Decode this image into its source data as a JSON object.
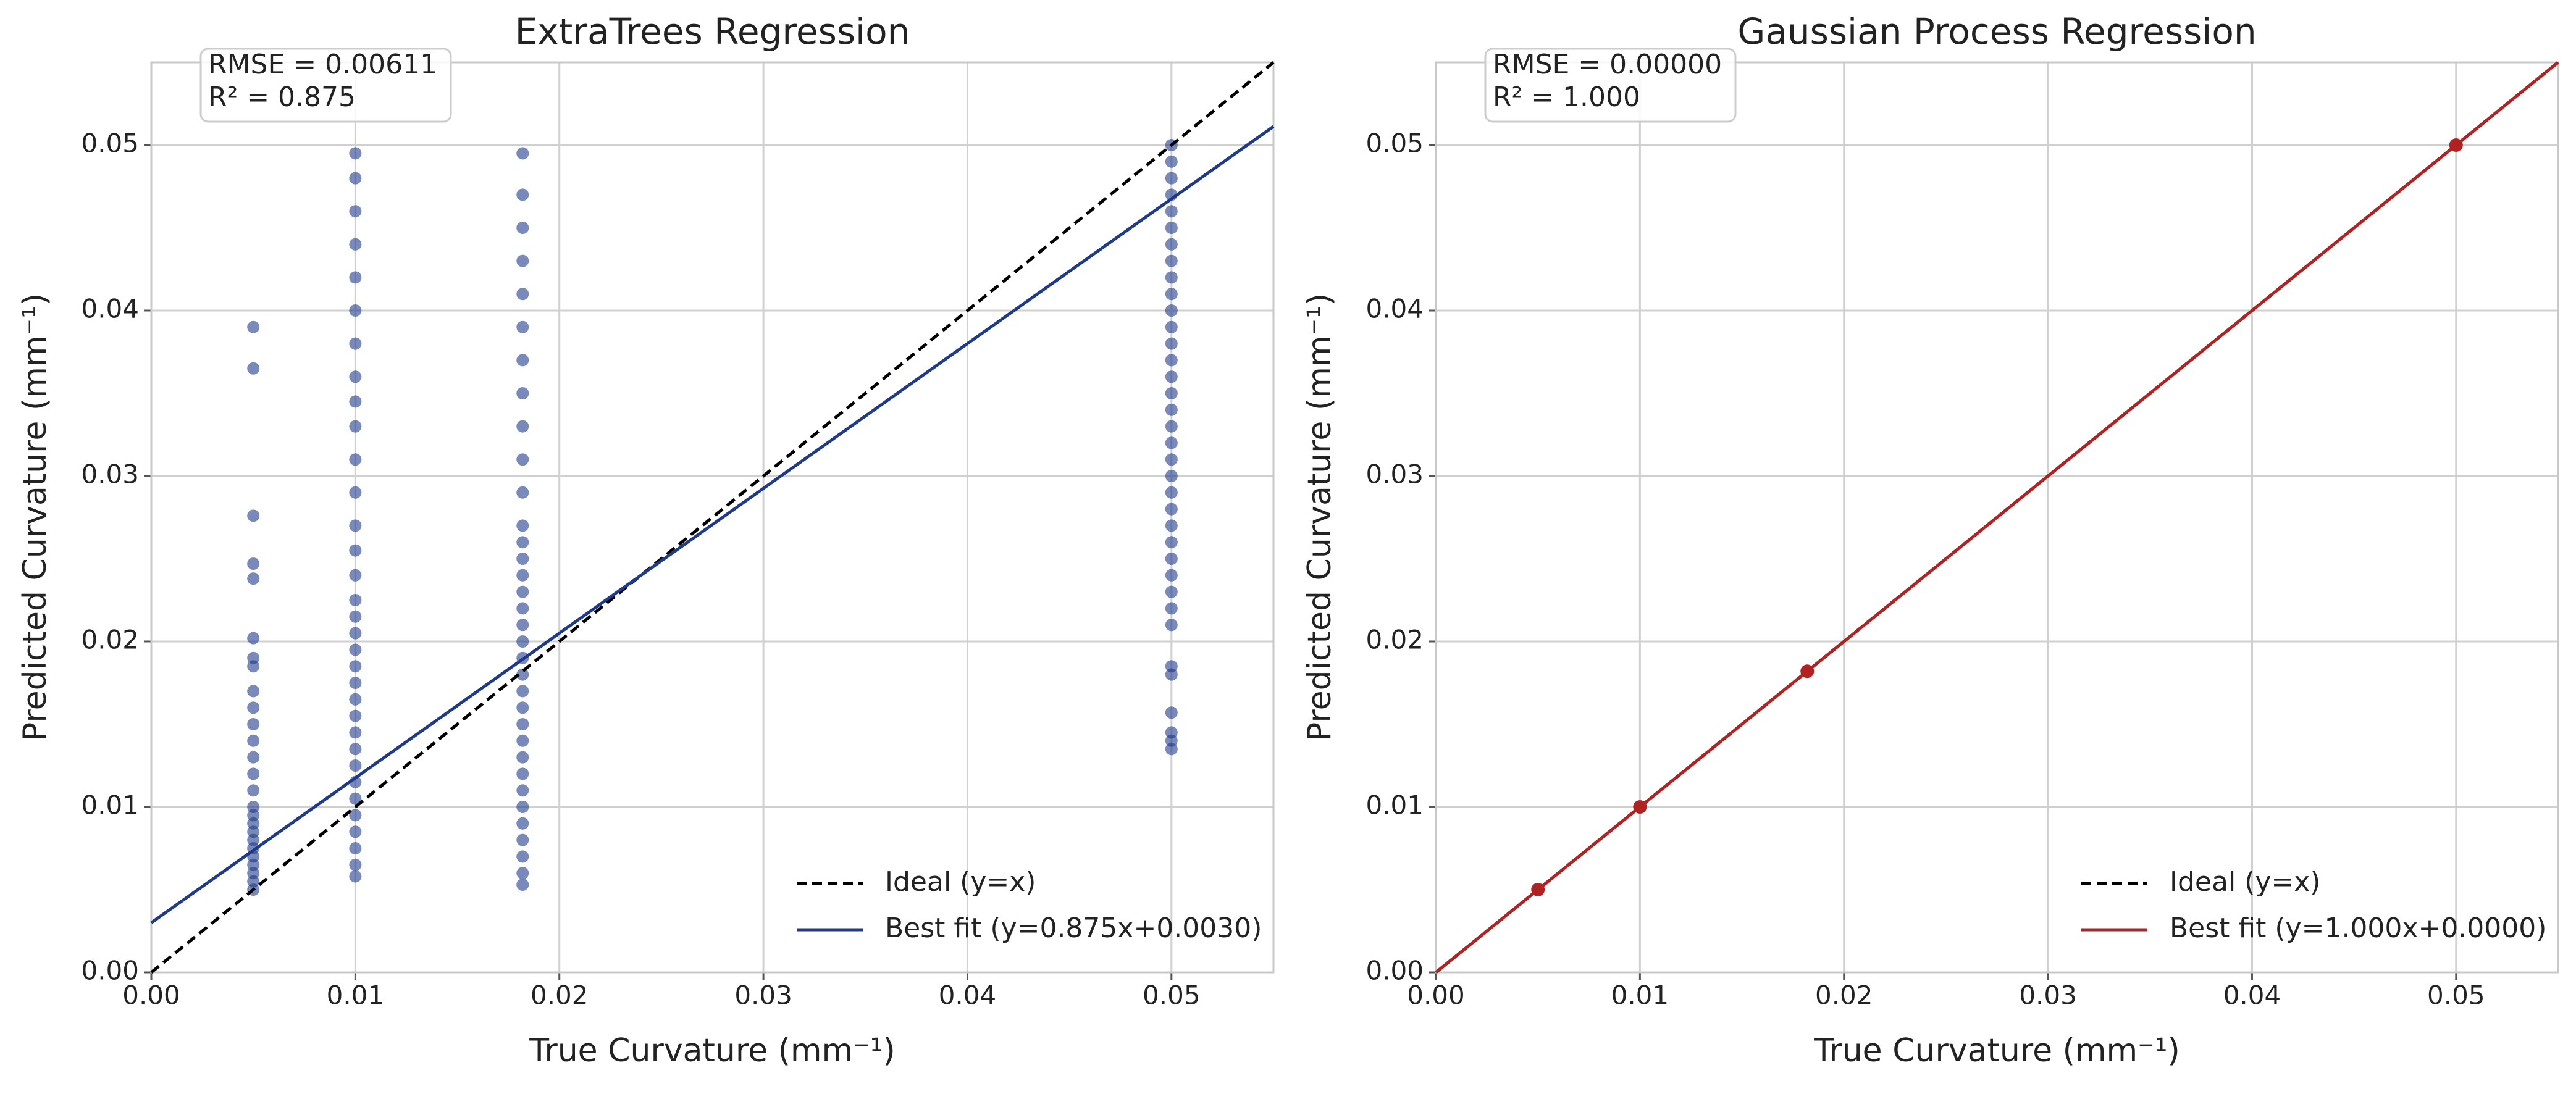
{
  "chart_data": [
    {
      "type": "scatter",
      "title": "ExtraTrees Regression",
      "xlabel": "True Curvature (mm⁻¹)",
      "ylabel": "Predicted Curvature (mm⁻¹)",
      "annotation": [
        "RMSE = 0.00611",
        "R² = 0.875"
      ],
      "xlim": [
        0,
        0.055
      ],
      "ylim": [
        0,
        0.055
      ],
      "xticks": [
        {
          "value": 0,
          "label": "0.00"
        },
        0.01,
        0.02,
        0.03,
        0.04,
        0.05
      ],
      "yticks": [
        {
          "value": 0,
          "label": "0.00"
        },
        0.01,
        0.02,
        0.03,
        0.04,
        0.05
      ],
      "grid": true,
      "legend": "lower right",
      "scatter": {
        "color": "#1f3a8a",
        "groups": [
          {
            "x": 0.005,
            "y": [
              0.005,
              0.0055,
              0.006,
              0.0065,
              0.007,
              0.0075,
              0.008,
              0.0085,
              0.009,
              0.0095,
              0.01,
              0.011,
              0.012,
              0.013,
              0.014,
              0.015,
              0.016,
              0.017,
              0.0185,
              0.019,
              0.0202,
              0.0238,
              0.0247,
              0.0276,
              0.0365,
              0.039
            ]
          },
          {
            "x": 0.01,
            "y": [
              0.0058,
              0.0065,
              0.0075,
              0.0085,
              0.0095,
              0.0105,
              0.0115,
              0.0125,
              0.0135,
              0.0145,
              0.0155,
              0.0165,
              0.0175,
              0.0185,
              0.0195,
              0.0205,
              0.0215,
              0.0225,
              0.024,
              0.0255,
              0.027,
              0.029,
              0.031,
              0.033,
              0.0345,
              0.036,
              0.038,
              0.04,
              0.042,
              0.044,
              0.046,
              0.048,
              0.0495
            ]
          },
          {
            "x": 0.0182,
            "y": [
              0.0053,
              0.006,
              0.007,
              0.008,
              0.009,
              0.01,
              0.011,
              0.012,
              0.013,
              0.014,
              0.015,
              0.016,
              0.017,
              0.018,
              0.019,
              0.02,
              0.021,
              0.022,
              0.023,
              0.024,
              0.025,
              0.026,
              0.027,
              0.029,
              0.031,
              0.033,
              0.035,
              0.037,
              0.039,
              0.041,
              0.043,
              0.045,
              0.047,
              0.0495
            ]
          },
          {
            "x": 0.05,
            "y": [
              0.0135,
              0.014,
              0.0145,
              0.0157,
              0.018,
              0.0185,
              0.021,
              0.022,
              0.023,
              0.024,
              0.025,
              0.026,
              0.027,
              0.028,
              0.029,
              0.03,
              0.031,
              0.032,
              0.033,
              0.034,
              0.035,
              0.036,
              0.037,
              0.038,
              0.039,
              0.04,
              0.041,
              0.042,
              0.043,
              0.044,
              0.045,
              0.046,
              0.047,
              0.048,
              0.049,
              0.05
            ]
          }
        ]
      },
      "lines": [
        {
          "name": "Ideal (y=x)",
          "color": "#000000",
          "dashed": true,
          "x": [
            0,
            0.055
          ],
          "y": [
            0,
            0.055
          ]
        },
        {
          "name": "Best fit (y=0.875x+0.0030)",
          "color": "#1f3a8a",
          "dashed": false,
          "x": [
            0,
            0.055
          ],
          "y": [
            0.003,
            0.051125
          ]
        }
      ]
    },
    {
      "type": "scatter",
      "title": "Gaussian Process Regression",
      "xlabel": "True Curvature (mm⁻¹)",
      "ylabel": "Predicted Curvature (mm⁻¹)",
      "annotation": [
        "RMSE = 0.00000",
        "R² = 1.000"
      ],
      "xlim": [
        0,
        0.055
      ],
      "ylim": [
        0,
        0.055
      ],
      "xticks": [
        {
          "value": 0,
          "label": "0.00"
        },
        0.01,
        0.02,
        0.03,
        0.04,
        0.05
      ],
      "yticks": [
        {
          "value": 0,
          "label": "0.00"
        },
        0.01,
        0.02,
        0.03,
        0.04,
        0.05
      ],
      "grid": true,
      "legend": "lower right",
      "scatter": {
        "color": "#b22222",
        "groups": [
          {
            "x": 0.005,
            "y": [
              0.005
            ]
          },
          {
            "x": 0.01,
            "y": [
              0.01
            ]
          },
          {
            "x": 0.0182,
            "y": [
              0.0182
            ]
          },
          {
            "x": 0.05,
            "y": [
              0.05
            ]
          }
        ]
      },
      "lines": [
        {
          "name": "Ideal (y=x)",
          "color": "#000000",
          "dashed": true,
          "x": [
            0,
            0.055
          ],
          "y": [
            0,
            0.055
          ]
        },
        {
          "name": "Best fit (y=1.000x+0.0000)",
          "color": "#b22222",
          "dashed": false,
          "x": [
            0,
            0.055
          ],
          "y": [
            0,
            0.055
          ]
        }
      ]
    }
  ]
}
